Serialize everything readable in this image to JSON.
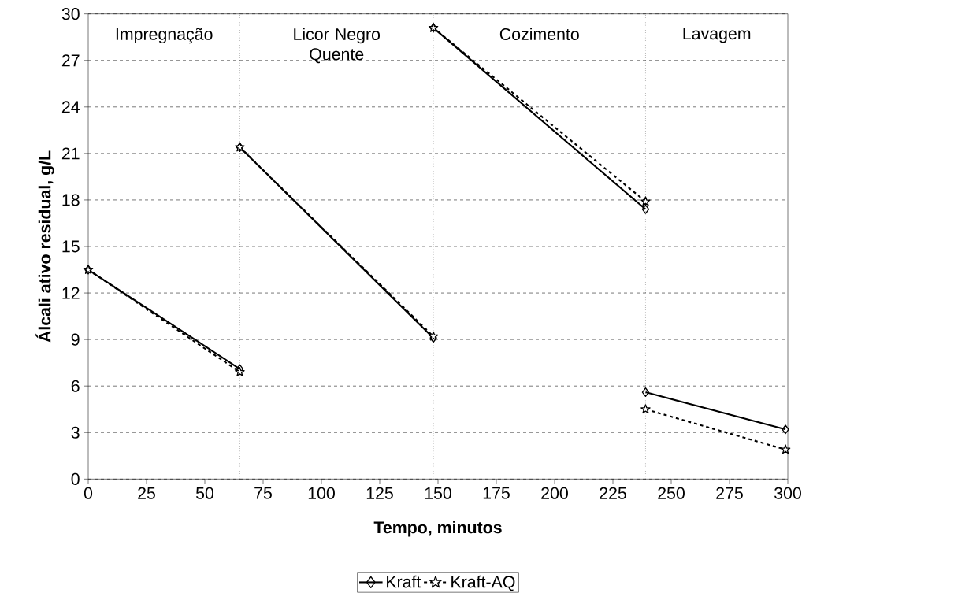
{
  "chart_data": {
    "type": "line",
    "xlabel": "Tempo, minutos",
    "ylabel": "Álcali ativo residual, g/L",
    "xlim": [
      0,
      300
    ],
    "ylim": [
      0,
      30
    ],
    "xticks": [
      0,
      25,
      50,
      75,
      100,
      125,
      150,
      175,
      200,
      225,
      250,
      275,
      300
    ],
    "yticks": [
      0,
      3,
      6,
      9,
      12,
      15,
      18,
      21,
      24,
      27,
      30
    ],
    "grid": "y",
    "legend": "bottom",
    "series": [
      {
        "name": "Kraft",
        "color": "#000000",
        "marker": "diamond",
        "line_style": "solid",
        "x": [
          0,
          65,
          null,
          65,
          148,
          null,
          148,
          239,
          null,
          239,
          299
        ],
        "values": [
          13.5,
          7.1,
          null,
          21.4,
          9.1,
          null,
          29.1,
          17.4,
          null,
          5.6,
          3.2
        ]
      },
      {
        "name": "Kraft-AQ",
        "color": "#000000",
        "marker": "star",
        "line_style": "dashed",
        "x": [
          0,
          65,
          null,
          65,
          148,
          null,
          148,
          239,
          null,
          239,
          299
        ],
        "values": [
          13.5,
          6.9,
          null,
          21.4,
          9.2,
          null,
          29.1,
          17.9,
          null,
          4.5,
          1.9
        ]
      }
    ],
    "ref_lines": [
      {
        "axis": "x",
        "value": 65,
        "line_style": "dotted",
        "color": "#000000"
      },
      {
        "axis": "x",
        "value": 148,
        "line_style": "dotted",
        "color": "#000000"
      },
      {
        "axis": "x",
        "value": 239,
        "line_style": "dotted",
        "color": "#000000"
      }
    ],
    "annotations": [
      "Impregnação",
      "Licor Negro Quente",
      "Cozimento",
      "Lavagem"
    ]
  }
}
